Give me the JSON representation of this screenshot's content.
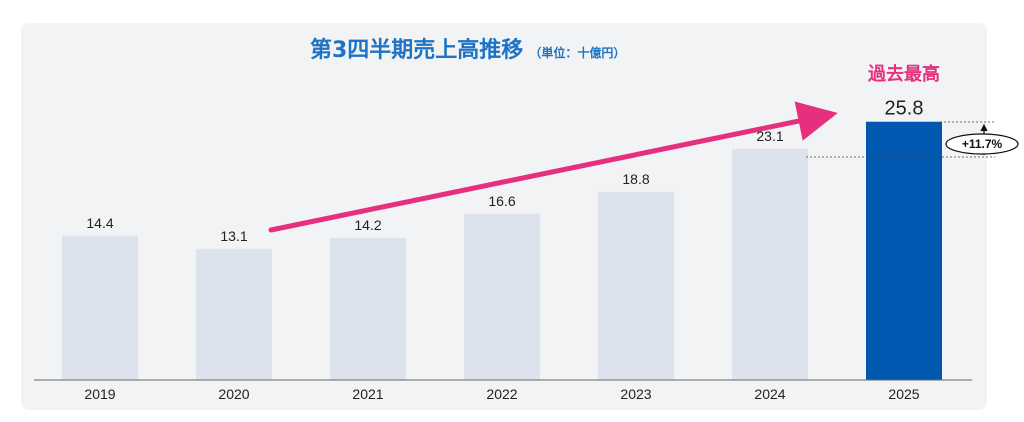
{
  "chart_data": {
    "type": "bar",
    "title": "第3四半期売上高推移",
    "unit_label": "（単位：十億円）",
    "categories": [
      "2019",
      "2020",
      "2021",
      "2022",
      "2023",
      "2024",
      "2025"
    ],
    "values": [
      14.4,
      13.1,
      14.2,
      16.6,
      18.8,
      23.1,
      25.8
    ],
    "value_labels": [
      "14.4",
      "13.1",
      "14.2",
      "16.6",
      "18.8",
      "23.1",
      "25.8"
    ],
    "highlight_index": 6,
    "highlight_label": "過去最高",
    "growth_label": "+11.7%",
    "xlabel": "",
    "ylabel": "",
    "ylim": [
      0,
      30
    ],
    "grid": false,
    "legend": "none"
  },
  "colors": {
    "title": "#1f73c4",
    "bar": "#dce3ec",
    "bar_highlight": "#0058b0",
    "arrow": "#e6307f",
    "highlight_text": "#e6307f",
    "panel": "#f2f3f4",
    "axis": "#666666"
  }
}
